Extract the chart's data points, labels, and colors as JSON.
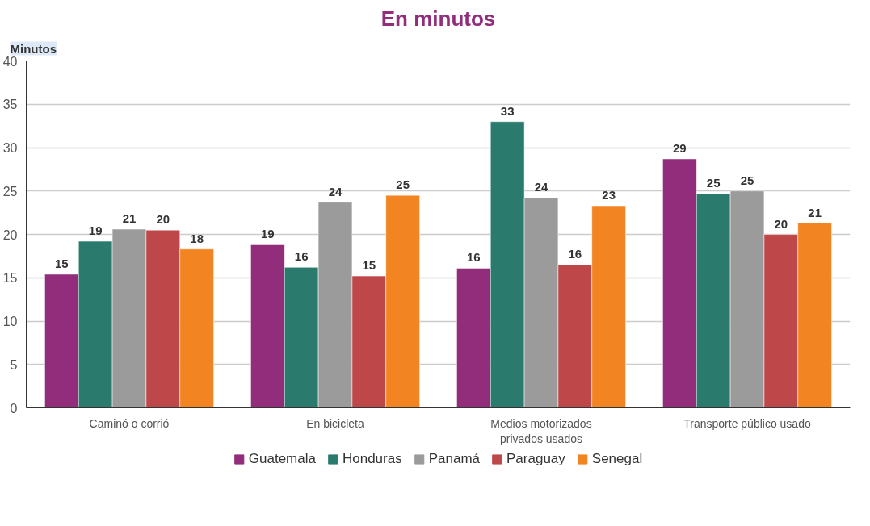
{
  "chart_data": {
    "type": "bar",
    "title": "En minutos",
    "ylabel": "Minutos",
    "categories": [
      "Caminó o corrió",
      "En bicicleta",
      "Medios motorizados privados usados",
      "Transporte público usado"
    ],
    "series": [
      {
        "name": "Guatemala",
        "color": "#922d7b",
        "values": [
          15.4,
          18.8,
          16.1,
          28.7
        ],
        "value_labels": [
          "15",
          "19",
          "16",
          "29"
        ]
      },
      {
        "name": "Honduras",
        "color": "#2a7b6e",
        "values": [
          19.2,
          16.2,
          33.0,
          24.7
        ],
        "value_labels": [
          "19",
          "16",
          "33",
          "25"
        ]
      },
      {
        "name": "Panamá",
        "color": "#9b9b9b",
        "values": [
          20.6,
          23.7,
          24.2,
          25.0
        ],
        "value_labels": [
          "21",
          "24",
          "24",
          "25"
        ]
      },
      {
        "name": "Paraguay",
        "color": "#be474a",
        "values": [
          20.5,
          15.2,
          16.5,
          20.0
        ],
        "value_labels": [
          "20",
          "15",
          "16",
          "20"
        ]
      },
      {
        "name": "Senegal",
        "color": "#f28421",
        "values": [
          18.3,
          24.5,
          23.3,
          21.3
        ],
        "value_labels": [
          "18",
          "25",
          "23",
          "21"
        ]
      }
    ],
    "ylim": [
      0,
      40
    ],
    "yticks": [
      0,
      5,
      10,
      15,
      20,
      25,
      30,
      35,
      40
    ],
    "grid": "y",
    "legend": "bottom"
  }
}
